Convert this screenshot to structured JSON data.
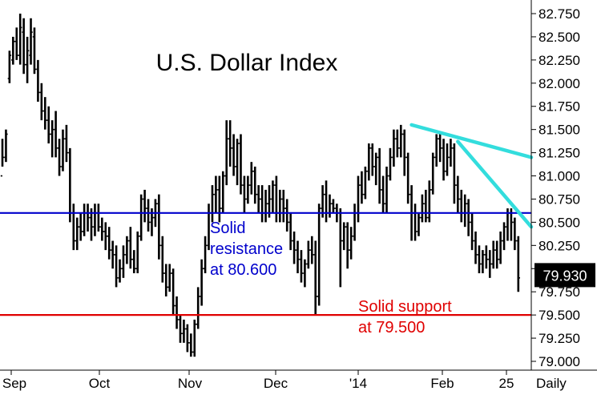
{
  "chart_data": {
    "type": "bar",
    "subtype": "ohlc",
    "title": "U.S. Dollar Index",
    "frequency_label": "Daily",
    "ylim": [
      79.0,
      82.75
    ],
    "y_ticks": [
      "79.000",
      "79.250",
      "79.500",
      "79.750",
      "80.000",
      "80.250",
      "80.500",
      "80.750",
      "81.000",
      "81.250",
      "81.500",
      "81.750",
      "82.000",
      "82.250",
      "82.500",
      "82.750"
    ],
    "x_ticks": [
      "Sep",
      "Oct",
      "Nov",
      "Dec",
      "'14",
      "Feb",
      "25"
    ],
    "last_price": "79.930",
    "grid": false,
    "colors": {
      "bars": "#000000",
      "resistance": "#0000cc",
      "support": "#e00000",
      "trendline": "#33dddd",
      "price_box": "#000000",
      "price_text": "#ffffff"
    },
    "levels": [
      {
        "kind": "resistance",
        "value": 80.6,
        "label_lines": [
          "Solid",
          "resistance",
          "at 80.600"
        ]
      },
      {
        "kind": "support",
        "value": 79.5,
        "label_lines": [
          "Solid support",
          "at 79.500"
        ]
      }
    ],
    "trendlines": [
      {
        "x1": 155,
        "y1": 81.55,
        "x2": 200,
        "y2": 81.2
      },
      {
        "x1": 168,
        "y1": 81.37,
        "x2": 200,
        "y2": 80.45
      }
    ],
    "bars": [
      [
        81.0,
        81.2,
        81.4,
        81.1
      ],
      [
        81.2,
        81.45,
        81.5,
        81.15
      ],
      [
        82.05,
        82.3,
        82.35,
        82.0
      ],
      [
        82.25,
        82.45,
        82.5,
        82.2
      ],
      [
        82.45,
        82.3,
        82.6,
        82.25
      ],
      [
        82.3,
        82.6,
        82.75,
        82.2
      ],
      [
        82.55,
        82.2,
        82.7,
        82.1
      ],
      [
        82.2,
        82.35,
        82.5,
        82.0
      ],
      [
        82.3,
        82.55,
        82.7,
        82.2
      ],
      [
        82.5,
        82.15,
        82.6,
        82.1
      ],
      [
        82.15,
        81.9,
        82.25,
        81.8
      ],
      [
        81.9,
        81.7,
        82.0,
        81.6
      ],
      [
        81.7,
        81.6,
        81.85,
        81.5
      ],
      [
        81.6,
        81.45,
        81.75,
        81.35
      ],
      [
        81.45,
        81.5,
        81.6,
        81.2
      ],
      [
        81.5,
        81.3,
        81.7,
        81.2
      ],
      [
        81.3,
        81.1,
        81.4,
        81.0
      ],
      [
        81.1,
        81.4,
        81.5,
        81.05
      ],
      [
        81.4,
        81.25,
        81.55,
        81.15
      ],
      [
        81.25,
        80.6,
        81.3,
        80.5
      ],
      [
        80.6,
        80.3,
        80.7,
        80.2
      ],
      [
        80.3,
        80.45,
        80.55,
        80.2
      ],
      [
        80.45,
        80.4,
        80.6,
        80.3
      ],
      [
        80.4,
        80.6,
        80.7,
        80.35
      ],
      [
        80.6,
        80.55,
        80.7,
        80.4
      ],
      [
        80.55,
        80.45,
        80.65,
        80.3
      ],
      [
        80.45,
        80.6,
        80.7,
        80.35
      ],
      [
        80.6,
        80.45,
        80.7,
        80.4
      ],
      [
        80.45,
        80.4,
        80.55,
        80.3
      ],
      [
        80.4,
        80.35,
        80.5,
        80.2
      ],
      [
        80.35,
        80.2,
        80.45,
        80.1
      ],
      [
        80.2,
        80.15,
        80.3,
        80.0
      ],
      [
        80.15,
        79.9,
        80.25,
        79.8
      ],
      [
        79.9,
        80.0,
        80.1,
        79.85
      ],
      [
        80.0,
        80.15,
        80.25,
        79.9
      ],
      [
        80.15,
        80.3,
        80.35,
        80.05
      ],
      [
        80.3,
        80.1,
        80.45,
        80.0
      ],
      [
        80.1,
        80.0,
        80.2,
        79.95
      ],
      [
        80.0,
        80.35,
        80.4,
        79.95
      ],
      [
        80.35,
        80.75,
        80.8,
        80.3
      ],
      [
        80.75,
        80.65,
        80.85,
        80.5
      ],
      [
        80.65,
        80.5,
        80.75,
        80.4
      ],
      [
        80.5,
        80.55,
        80.65,
        80.35
      ],
      [
        80.55,
        80.7,
        80.75,
        80.45
      ],
      [
        80.7,
        80.25,
        80.8,
        80.1
      ],
      [
        80.25,
        79.95,
        80.35,
        79.85
      ],
      [
        79.95,
        79.8,
        80.05,
        79.7
      ],
      [
        79.8,
        79.95,
        80.05,
        79.75
      ],
      [
        79.95,
        79.6,
        80.0,
        79.5
      ],
      [
        79.6,
        79.45,
        79.7,
        79.35
      ],
      [
        79.45,
        79.3,
        79.5,
        79.2
      ],
      [
        79.3,
        79.35,
        79.45,
        79.2
      ],
      [
        79.35,
        79.2,
        79.4,
        79.1
      ],
      [
        79.2,
        79.1,
        79.3,
        79.05
      ],
      [
        79.1,
        79.4,
        79.45,
        79.05
      ],
      [
        79.4,
        79.7,
        79.8,
        79.35
      ],
      [
        79.7,
        80.0,
        80.1,
        79.6
      ],
      [
        80.0,
        80.25,
        80.35,
        79.95
      ],
      [
        80.25,
        80.6,
        80.7,
        80.2
      ],
      [
        80.6,
        80.8,
        80.9,
        80.5
      ],
      [
        80.8,
        80.85,
        81.0,
        80.6
      ],
      [
        80.85,
        80.65,
        81.0,
        80.5
      ],
      [
        80.65,
        81.0,
        81.05,
        80.6
      ],
      [
        81.0,
        81.4,
        81.6,
        80.9
      ],
      [
        81.4,
        81.3,
        81.6,
        81.1
      ],
      [
        81.3,
        81.1,
        81.45,
        81.0
      ],
      [
        81.1,
        81.35,
        81.4,
        80.9
      ],
      [
        81.35,
        80.9,
        81.45,
        80.8
      ],
      [
        80.9,
        80.75,
        81.0,
        80.6
      ],
      [
        80.75,
        80.9,
        81.0,
        80.7
      ],
      [
        80.9,
        81.05,
        81.15,
        80.8
      ],
      [
        81.05,
        80.8,
        81.1,
        80.7
      ],
      [
        80.8,
        80.75,
        80.9,
        80.6
      ],
      [
        80.75,
        80.6,
        80.9,
        80.5
      ],
      [
        80.6,
        80.7,
        80.85,
        80.5
      ],
      [
        80.7,
        80.75,
        80.9,
        80.55
      ],
      [
        80.75,
        80.9,
        80.95,
        80.6
      ],
      [
        80.9,
        80.6,
        81.0,
        80.5
      ],
      [
        80.6,
        80.75,
        80.85,
        80.5
      ],
      [
        80.75,
        80.65,
        80.85,
        80.5
      ],
      [
        80.65,
        80.5,
        80.75,
        80.4
      ],
      [
        80.5,
        80.3,
        80.6,
        80.2
      ],
      [
        80.3,
        80.2,
        80.4,
        80.05
      ],
      [
        80.2,
        80.1,
        80.3,
        79.95
      ],
      [
        80.1,
        79.95,
        80.2,
        79.85
      ],
      [
        79.95,
        80.05,
        80.1,
        79.8
      ],
      [
        80.05,
        80.2,
        80.3,
        80.0
      ],
      [
        80.2,
        80.15,
        80.35,
        80.05
      ],
      [
        80.15,
        79.7,
        80.3,
        79.5
      ],
      [
        79.7,
        80.65,
        80.7,
        79.6
      ],
      [
        80.65,
        80.8,
        80.9,
        80.55
      ],
      [
        80.8,
        80.6,
        80.95,
        80.5
      ],
      [
        80.6,
        80.7,
        80.8,
        80.55
      ],
      [
        80.7,
        80.65,
        80.75,
        80.6
      ],
      [
        80.65,
        80.6,
        80.7,
        80.5
      ],
      [
        80.6,
        80.3,
        80.65,
        79.8
      ],
      [
        80.3,
        80.45,
        80.5,
        80.2
      ],
      [
        80.45,
        80.2,
        80.5,
        80.0
      ],
      [
        80.2,
        80.35,
        80.45,
        80.1
      ],
      [
        80.35,
        80.6,
        80.7,
        80.3
      ],
      [
        80.6,
        80.9,
        81.0,
        80.5
      ],
      [
        80.9,
        80.8,
        81.05,
        80.7
      ],
      [
        80.8,
        81.05,
        81.1,
        80.75
      ],
      [
        81.05,
        81.3,
        81.35,
        80.95
      ],
      [
        81.3,
        81.1,
        81.35,
        81.0
      ],
      [
        81.1,
        81.2,
        81.25,
        80.9
      ],
      [
        81.2,
        80.85,
        81.3,
        80.7
      ],
      [
        80.85,
        80.7,
        81.0,
        80.6
      ],
      [
        80.7,
        81.0,
        81.1,
        80.6
      ],
      [
        81.0,
        81.2,
        81.3,
        80.95
      ],
      [
        81.2,
        81.4,
        81.5,
        81.1
      ],
      [
        81.4,
        81.3,
        81.5,
        81.2
      ],
      [
        81.3,
        81.45,
        81.55,
        81.2
      ],
      [
        81.45,
        81.2,
        81.5,
        81.0
      ],
      [
        81.2,
        80.8,
        81.25,
        80.7
      ],
      [
        80.8,
        80.6,
        80.9,
        80.3
      ],
      [
        80.6,
        80.4,
        80.7,
        80.3
      ],
      [
        80.4,
        80.55,
        80.6,
        80.35
      ],
      [
        80.55,
        80.7,
        80.8,
        80.5
      ],
      [
        80.7,
        80.55,
        80.85,
        80.5
      ],
      [
        80.55,
        80.85,
        80.95,
        80.5
      ],
      [
        80.85,
        81.2,
        81.25,
        80.8
      ],
      [
        81.2,
        81.4,
        81.45,
        81.1
      ],
      [
        81.4,
        81.3,
        81.45,
        81.15
      ],
      [
        81.3,
        81.05,
        81.4,
        80.95
      ],
      [
        81.05,
        81.2,
        81.35,
        81.0
      ],
      [
        81.2,
        81.3,
        81.4,
        81.1
      ],
      [
        81.3,
        80.9,
        81.35,
        80.7
      ],
      [
        80.9,
        80.75,
        81.0,
        80.6
      ],
      [
        80.75,
        80.6,
        80.85,
        80.5
      ],
      [
        80.6,
        80.7,
        80.8,
        80.45
      ],
      [
        80.7,
        80.5,
        80.75,
        80.35
      ],
      [
        80.5,
        80.3,
        80.6,
        80.2
      ],
      [
        80.3,
        80.15,
        80.4,
        80.05
      ],
      [
        80.15,
        80.05,
        80.25,
        79.95
      ],
      [
        80.05,
        80.15,
        80.2,
        79.95
      ],
      [
        80.15,
        80.1,
        80.25,
        80.0
      ],
      [
        80.1,
        80.05,
        80.2,
        79.9
      ],
      [
        80.05,
        80.2,
        80.3,
        80.0
      ],
      [
        80.2,
        80.1,
        80.3,
        80.0
      ],
      [
        80.1,
        80.3,
        80.4,
        80.05
      ],
      [
        80.3,
        80.45,
        80.5,
        80.2
      ],
      [
        80.45,
        80.6,
        80.65,
        80.3
      ],
      [
        80.6,
        80.5,
        80.65,
        80.3
      ],
      [
        80.5,
        80.3,
        80.55,
        80.2
      ],
      [
        80.3,
        79.9,
        80.35,
        79.75
      ]
    ]
  }
}
